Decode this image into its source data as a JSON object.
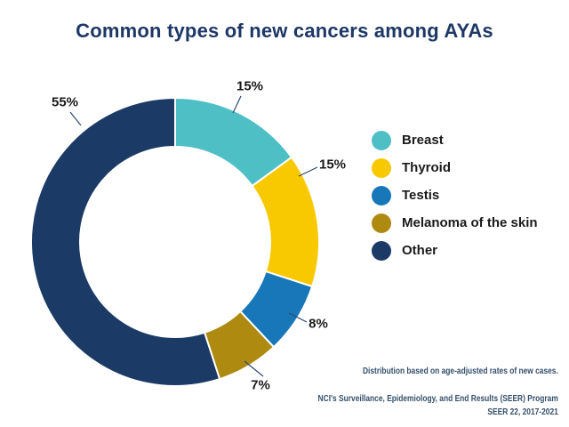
{
  "title": "Common types of new cancers among AYAs",
  "colors": {
    "title": "#1d3766",
    "label_text": "#1a1a1a",
    "leader_line": "#2c4a74",
    "footnote_text": "#35506b",
    "background": "#ffffff"
  },
  "chart_data": {
    "type": "pie",
    "subtype": "donut",
    "title": "Common types of new cancers among AYAs",
    "start_angle_deg": 0,
    "direction": "clockwise",
    "categories": [
      "Breast",
      "Thyroid",
      "Testis",
      "Melanoma of the skin",
      "Other"
    ],
    "values": [
      15,
      15,
      8,
      7,
      55
    ],
    "labels": [
      "15%",
      "15%",
      "8%",
      "7%",
      "55%"
    ],
    "colors": [
      "#4fbfc6",
      "#f8c800",
      "#1777b8",
      "#af8a10",
      "#1b3a66"
    ],
    "legend_position": "right",
    "units": "percent"
  },
  "footnotes": {
    "line1": "Distribution based on age-adjusted rates of new cases.",
    "line2": "NCI's Surveillance, Epidemiology, and End Results (SEER) Program",
    "line3": "SEER 22, 2017-2021"
  }
}
